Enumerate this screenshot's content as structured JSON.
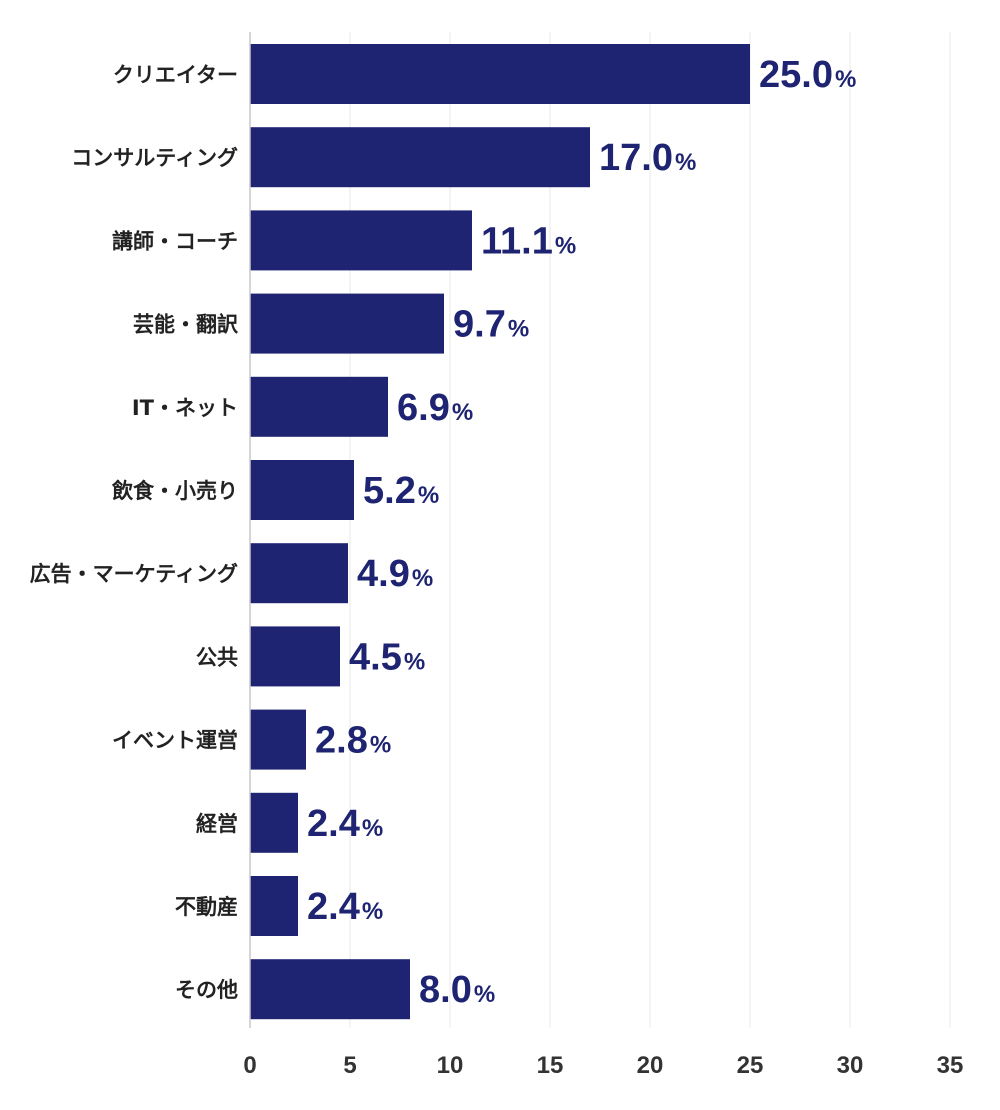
{
  "chart_data": {
    "type": "bar",
    "orientation": "horizontal",
    "categories": [
      "クリエイター",
      "コンサルティング",
      "講師・コーチ",
      "芸能・翻訳",
      "IT・ネット",
      "飲食・小売り",
      "広告・マーケティング",
      "公共",
      "イベント運営",
      "経営",
      "不動産",
      "その他"
    ],
    "values": [
      25.0,
      17.0,
      11.1,
      9.7,
      6.9,
      5.2,
      4.9,
      4.5,
      2.8,
      2.4,
      2.4,
      8.0
    ],
    "value_labels": [
      "25.0",
      "17.0",
      "11.1",
      "9.7",
      "6.9",
      "5.2",
      "4.9",
      "4.5",
      "2.8",
      "2.4",
      "2.4",
      "8.0"
    ],
    "value_unit": "%",
    "x_ticks": [
      "0",
      "5",
      "10",
      "15",
      "20",
      "25",
      "30",
      "35"
    ],
    "xlim": [
      0,
      35
    ],
    "grid": true,
    "legend": "none",
    "title": "",
    "xlabel": "",
    "ylabel": ""
  },
  "colors": {
    "bar": "#1e2472",
    "value_label": "#1e2472",
    "grid": "#e8e8e8",
    "axis": "#c8c8c8",
    "category_text": "#222222",
    "tick_text": "#333333"
  }
}
